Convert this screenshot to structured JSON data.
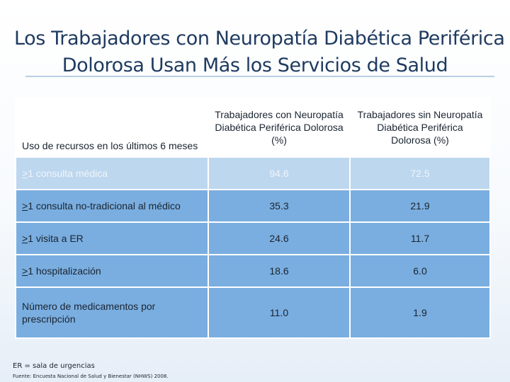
{
  "slide": {
    "title_line1": "Los Trabajadores con Neuropatía Diabética Periférica",
    "title_line2": "Dolorosa Usan Más los Servicios de Salud"
  },
  "table": {
    "headers": [
      "Uso de recursos en los últimos 6 meses",
      "Trabajadores con Neuropatía Diabética Periférica Dolorosa (%)",
      "Trabajadores sin Neuropatía Diabética Periférica Dolorosa (%)"
    ],
    "rows": [
      {
        "prefix": ">",
        "label": "1 consulta médica",
        "with": "94.6",
        "without": "72.5"
      },
      {
        "prefix": ">",
        "label": "1 consulta no-tradicional al médico",
        "with": "35.3",
        "without": "21.9"
      },
      {
        "prefix": ">",
        "label": "1 visita a ER",
        "with": "24.6",
        "without": "11.7"
      },
      {
        "prefix": ">",
        "label": "1 hospitalización",
        "with": "18.6",
        "without": "6.0"
      },
      {
        "prefix": "",
        "label": "Número de medicamentos por prescripción",
        "with": "11.0",
        "without": "1.9"
      }
    ]
  },
  "footer": {
    "note": "ER = sala de urgencias",
    "source": "Fuente: Encuesta Nacional de Salud y Bienestar (NHWS) 2008."
  }
}
